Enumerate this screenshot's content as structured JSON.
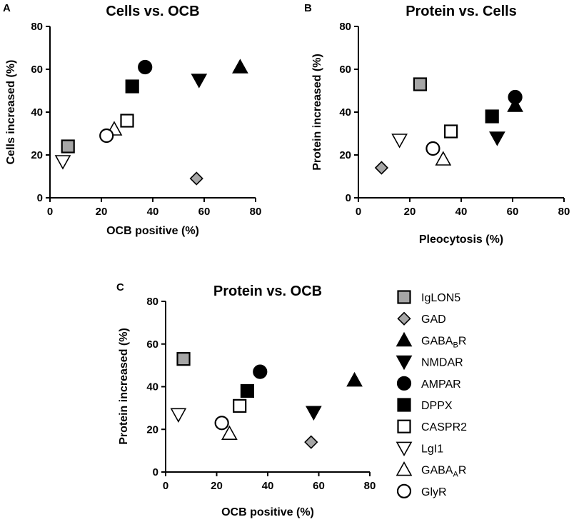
{
  "figure": {
    "legend": [
      {
        "label": "IgLON5",
        "sub": "",
        "suffix": "",
        "marker": "square",
        "fill": "#a6a6a6"
      },
      {
        "label": "GAD",
        "sub": "",
        "suffix": "",
        "marker": "diamond",
        "fill": "#a6a6a6"
      },
      {
        "label": "GABA",
        "sub": "B",
        "suffix": "R",
        "marker": "triangle-up",
        "fill": "#000000"
      },
      {
        "label": "NMDAR",
        "sub": "",
        "suffix": "",
        "marker": "triangle-down",
        "fill": "#000000"
      },
      {
        "label": "AMPAR",
        "sub": "",
        "suffix": "",
        "marker": "circle",
        "fill": "#000000"
      },
      {
        "label": "DPPX",
        "sub": "",
        "suffix": "",
        "marker": "square",
        "fill": "#000000"
      },
      {
        "label": "CASPR2",
        "sub": "",
        "suffix": "",
        "marker": "square",
        "fill": "#ffffff"
      },
      {
        "label": "LgI1",
        "sub": "",
        "suffix": "",
        "marker": "triangle-down",
        "fill": "#ffffff"
      },
      {
        "label": "GABA",
        "sub": "A",
        "suffix": "R",
        "marker": "triangle-up",
        "fill": "#ffffff"
      },
      {
        "label": "GlyR",
        "sub": "",
        "suffix": "",
        "marker": "circle",
        "fill": "#ffffff"
      }
    ]
  },
  "chart_data": [
    {
      "panel": "A",
      "type": "scatter",
      "title": "Cells vs. OCB",
      "xlabel": "OCB positive (%)",
      "ylabel": "Cells increased (%)",
      "xlim": [
        0,
        80
      ],
      "ylim": [
        0,
        80
      ],
      "xticks": [
        0,
        20,
        40,
        60,
        80
      ],
      "yticks": [
        0,
        20,
        40,
        60,
        80
      ],
      "points": [
        {
          "name": "IgLON5",
          "x": 7,
          "y": 24
        },
        {
          "name": "GAD",
          "x": 57,
          "y": 9
        },
        {
          "name": "GABABR",
          "x": 74,
          "y": 61
        },
        {
          "name": "NMDAR",
          "x": 58,
          "y": 55
        },
        {
          "name": "AMPAR",
          "x": 37,
          "y": 61
        },
        {
          "name": "DPPX",
          "x": 32,
          "y": 52
        },
        {
          "name": "CASPR2",
          "x": 30,
          "y": 36
        },
        {
          "name": "LgI1",
          "x": 5,
          "y": 17
        },
        {
          "name": "GABAAR",
          "x": 25,
          "y": 32
        },
        {
          "name": "GlyR",
          "x": 22,
          "y": 29
        }
      ]
    },
    {
      "panel": "B",
      "type": "scatter",
      "title": "Protein vs. Cells",
      "xlabel": "Pleocytosis (%)",
      "ylabel": "Protein  increased (%)",
      "xlim": [
        0,
        80
      ],
      "ylim": [
        0,
        80
      ],
      "xticks": [
        0,
        20,
        40,
        60,
        80
      ],
      "yticks": [
        0,
        20,
        40,
        60,
        80
      ],
      "points": [
        {
          "name": "IgLON5",
          "x": 24,
          "y": 53
        },
        {
          "name": "GAD",
          "x": 9,
          "y": 14
        },
        {
          "name": "GABABR",
          "x": 61,
          "y": 43
        },
        {
          "name": "NMDAR",
          "x": 54,
          "y": 28
        },
        {
          "name": "AMPAR",
          "x": 61,
          "y": 47
        },
        {
          "name": "DPPX",
          "x": 52,
          "y": 38
        },
        {
          "name": "CASPR2",
          "x": 36,
          "y": 31
        },
        {
          "name": "LgI1",
          "x": 16,
          "y": 27
        },
        {
          "name": "GABAAR",
          "x": 33,
          "y": 18
        },
        {
          "name": "GlyR",
          "x": 29,
          "y": 23
        }
      ]
    },
    {
      "panel": "C",
      "type": "scatter",
      "title": "Protein vs. OCB",
      "xlabel": "OCB positive (%)",
      "ylabel": "Protein increased (%)",
      "xlim": [
        0,
        80
      ],
      "ylim": [
        0,
        80
      ],
      "xticks": [
        0,
        20,
        40,
        60,
        80
      ],
      "yticks": [
        0,
        20,
        40,
        60,
        80
      ],
      "points": [
        {
          "name": "IgLON5",
          "x": 7,
          "y": 53
        },
        {
          "name": "GAD",
          "x": 57,
          "y": 14
        },
        {
          "name": "GABABR",
          "x": 74,
          "y": 43
        },
        {
          "name": "NMDAR",
          "x": 58,
          "y": 28
        },
        {
          "name": "AMPAR",
          "x": 37,
          "y": 47
        },
        {
          "name": "DPPX",
          "x": 32,
          "y": 38
        },
        {
          "name": "CASPR2",
          "x": 29,
          "y": 31
        },
        {
          "name": "LgI1",
          "x": 5,
          "y": 27
        },
        {
          "name": "GABAAR",
          "x": 25,
          "y": 18
        },
        {
          "name": "GlyR",
          "x": 22,
          "y": 23
        }
      ]
    }
  ]
}
